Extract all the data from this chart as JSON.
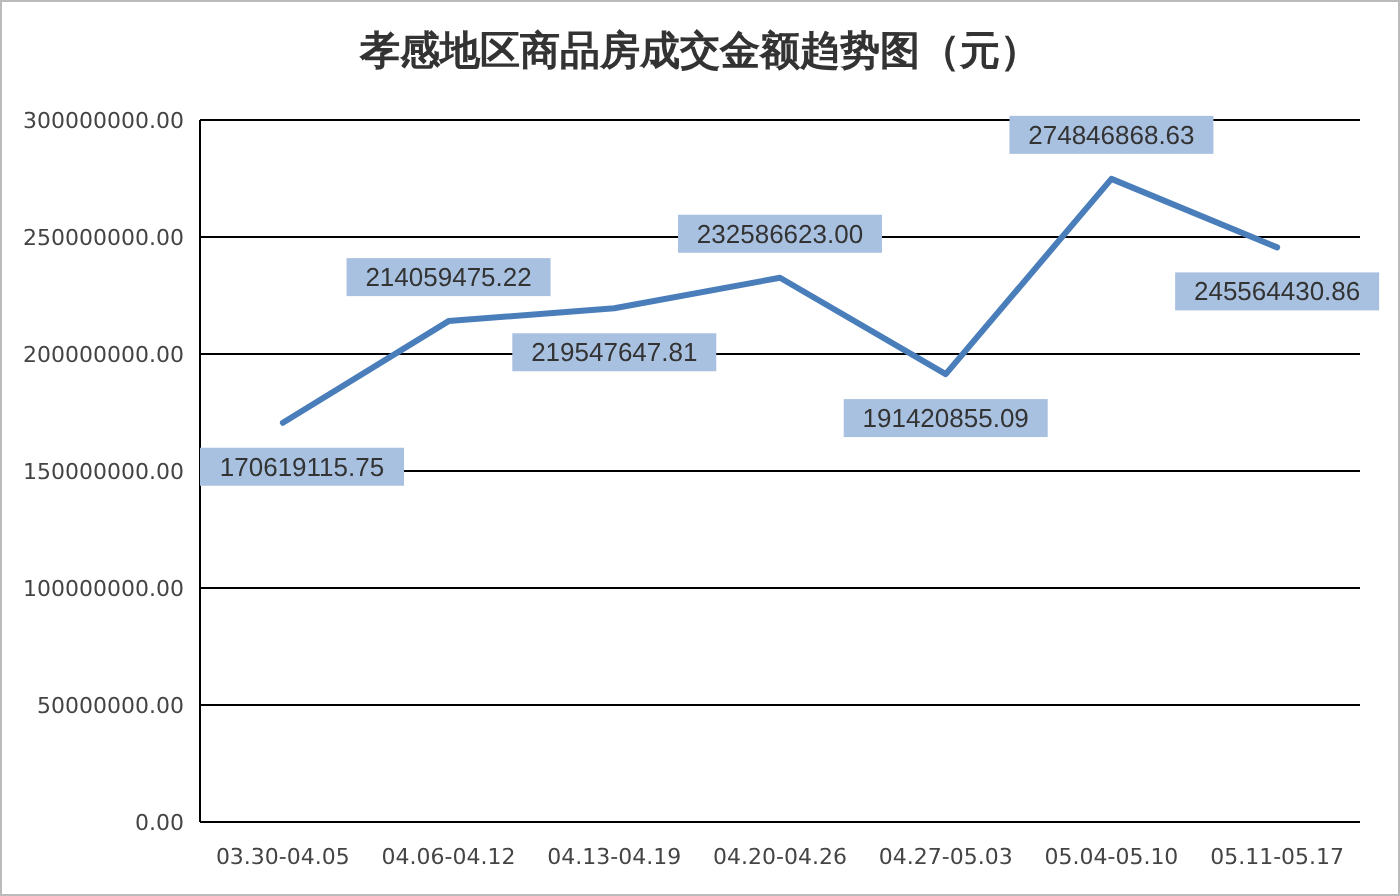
{
  "chart_data": {
    "type": "line",
    "title": "孝感地区商品房成交金额趋势图（元）",
    "categories": [
      "03.30-04.05",
      "04.06-04.12",
      "04.13-04.19",
      "04.20-04.26",
      "04.27-05.03",
      "05.04-05.10",
      "05.11-05.17"
    ],
    "series": [
      {
        "color": "#4a7ebb",
        "values": [
          170619115.75,
          214059475.22,
          219547647.81,
          232586623.0,
          191420855.09,
          274846868.63,
          245564430.86
        ],
        "value_labels": [
          "170619115.75",
          "214059475.22",
          "219547647.81",
          "232586623.00",
          "191420855.09",
          "274846868.63",
          "245564430.86"
        ]
      }
    ],
    "ylim": [
      0,
      300000000
    ],
    "yticks": [
      {
        "value": 0,
        "label": "0.00"
      },
      {
        "value": 50000000,
        "label": "50000000.00"
      },
      {
        "value": 100000000,
        "label": "100000000.00"
      },
      {
        "value": 150000000,
        "label": "150000000.00"
      },
      {
        "value": 200000000,
        "label": "200000000.00"
      },
      {
        "value": 250000000,
        "label": "250000000.00"
      },
      {
        "value": 300000000,
        "label": "300000000.00"
      }
    ],
    "grid": "y",
    "marker": "none",
    "line_style": "solid"
  }
}
